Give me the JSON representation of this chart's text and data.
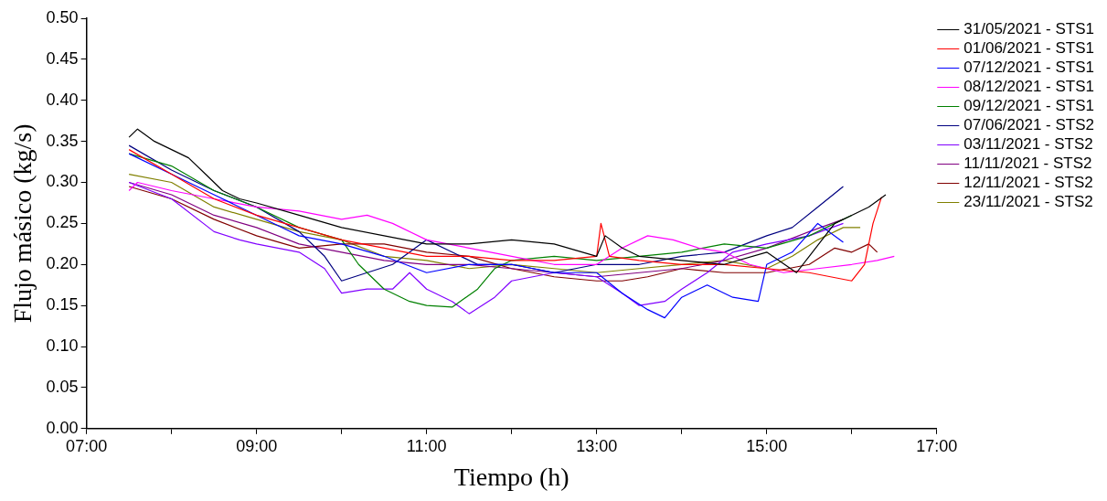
{
  "chart_data": {
    "type": "line",
    "xlabel": "Tiempo (h)",
    "ylabel": "Flujo másico (kg/s)",
    "xlim": [
      7,
      17
    ],
    "ylim": [
      0,
      0.5
    ],
    "xticks": [
      {
        "value": 7,
        "label": "07:00"
      },
      {
        "value": 8,
        "label": null
      },
      {
        "value": 9,
        "label": "09:00"
      },
      {
        "value": 10,
        "label": null
      },
      {
        "value": 11,
        "label": "11:00"
      },
      {
        "value": 12,
        "label": null
      },
      {
        "value": 13,
        "label": "13:00"
      },
      {
        "value": 14,
        "label": null
      },
      {
        "value": 15,
        "label": "15:00"
      },
      {
        "value": 16,
        "label": null
      },
      {
        "value": 17,
        "label": "17:00"
      }
    ],
    "yticks": [
      {
        "value": 0,
        "label": "0.00"
      },
      {
        "value": 0.05,
        "label": "0.05"
      },
      {
        "value": 0.1,
        "label": "0.10"
      },
      {
        "value": 0.15,
        "label": "0.15"
      },
      {
        "value": 0.2,
        "label": "0.20"
      },
      {
        "value": 0.25,
        "label": "0.25"
      },
      {
        "value": 0.3,
        "label": "0.30"
      },
      {
        "value": 0.35,
        "label": "0.35"
      },
      {
        "value": 0.4,
        "label": "0.40"
      },
      {
        "value": 0.45,
        "label": "0.45"
      },
      {
        "value": 0.5,
        "label": "0.50"
      }
    ],
    "legend": "top right",
    "marker": "none",
    "line_style": "solid",
    "series": [
      {
        "name": "31/05/2021 - STS1",
        "color": "#000000",
        "x": [
          7.5,
          7.6,
          7.8,
          8.0,
          8.2,
          8.4,
          8.6,
          8.8,
          9.0,
          9.5,
          10.0,
          10.5,
          11.0,
          11.5,
          12.0,
          12.5,
          13.0,
          13.1,
          13.3,
          13.5,
          14.0,
          14.5,
          15.0,
          15.35,
          15.5,
          15.8,
          16.0,
          16.2,
          16.4
        ],
        "values": [
          0.355,
          0.365,
          0.35,
          0.34,
          0.33,
          0.31,
          0.29,
          0.28,
          0.275,
          0.26,
          0.245,
          0.235,
          0.225,
          0.225,
          0.23,
          0.225,
          0.21,
          0.235,
          0.22,
          0.21,
          0.205,
          0.2,
          0.215,
          0.19,
          0.21,
          0.25,
          0.26,
          0.27,
          0.285
        ]
      },
      {
        "name": "01/06/2021 - STS1",
        "color": "#ff0000",
        "x": [
          7.5,
          8.0,
          8.5,
          9.0,
          9.5,
          10.0,
          10.5,
          11.0,
          11.5,
          12.0,
          12.5,
          13.0,
          13.05,
          13.15,
          13.5,
          14.0,
          14.5,
          15.0,
          15.5,
          16.0,
          16.15,
          16.25,
          16.35
        ],
        "values": [
          0.34,
          0.31,
          0.28,
          0.26,
          0.245,
          0.23,
          0.22,
          0.21,
          0.21,
          0.205,
          0.205,
          0.21,
          0.25,
          0.21,
          0.205,
          0.2,
          0.2,
          0.195,
          0.19,
          0.18,
          0.2,
          0.25,
          0.282
        ]
      },
      {
        "name": "07/12/2021 - STS1",
        "color": "#0000ff",
        "x": [
          7.5,
          8.0,
          8.5,
          9.0,
          9.5,
          10.0,
          10.5,
          11.0,
          11.5,
          12.0,
          12.5,
          13.0,
          13.3,
          13.6,
          13.8,
          14.0,
          14.3,
          14.6,
          14.9,
          15.0,
          15.3,
          15.6,
          15.9
        ],
        "values": [
          0.335,
          0.31,
          0.285,
          0.26,
          0.235,
          0.225,
          0.21,
          0.19,
          0.2,
          0.2,
          0.19,
          0.19,
          0.165,
          0.145,
          0.135,
          0.16,
          0.175,
          0.16,
          0.155,
          0.2,
          0.215,
          0.25,
          0.227
        ]
      },
      {
        "name": "08/12/2021 - STS1",
        "color": "#ff00ff",
        "x": [
          7.5,
          7.6,
          8.0,
          8.5,
          9.0,
          9.5,
          10.0,
          10.3,
          10.6,
          11.0,
          11.5,
          12.0,
          12.5,
          13.0,
          13.3,
          13.6,
          13.9,
          14.2,
          14.5,
          14.8,
          15.2,
          15.6,
          16.0,
          16.3,
          16.5
        ],
        "values": [
          0.29,
          0.3,
          0.29,
          0.28,
          0.27,
          0.265,
          0.255,
          0.26,
          0.25,
          0.23,
          0.22,
          0.21,
          0.2,
          0.2,
          0.22,
          0.235,
          0.23,
          0.22,
          0.215,
          0.2,
          0.19,
          0.195,
          0.2,
          0.205,
          0.21
        ]
      },
      {
        "name": "09/12/2021 - STS1",
        "color": "#008000",
        "x": [
          7.5,
          8.0,
          8.5,
          9.0,
          9.5,
          10.0,
          10.2,
          10.5,
          10.8,
          11.0,
          11.3,
          11.6,
          11.8,
          12.0,
          12.5,
          13.0,
          13.5,
          14.0,
          14.5,
          15.0,
          15.5,
          15.8,
          16.0
        ],
        "values": [
          0.335,
          0.32,
          0.29,
          0.27,
          0.245,
          0.23,
          0.2,
          0.17,
          0.155,
          0.15,
          0.148,
          0.17,
          0.195,
          0.205,
          0.21,
          0.205,
          0.21,
          0.215,
          0.225,
          0.22,
          0.235,
          0.25,
          0.26
        ]
      },
      {
        "name": "07/06/2021 - STS2",
        "color": "#000080",
        "x": [
          7.5,
          8.0,
          8.5,
          9.0,
          9.5,
          9.8,
          10.0,
          10.3,
          10.6,
          11.0,
          11.3,
          11.6,
          12.0,
          12.5,
          13.0,
          13.5,
          14.0,
          14.5,
          15.0,
          15.3,
          15.6,
          15.9
        ],
        "values": [
          0.345,
          0.315,
          0.29,
          0.27,
          0.24,
          0.21,
          0.18,
          0.19,
          0.2,
          0.23,
          0.215,
          0.2,
          0.2,
          0.19,
          0.2,
          0.2,
          0.21,
          0.215,
          0.235,
          0.245,
          0.27,
          0.295
        ]
      },
      {
        "name": "03/11/2021 - STS2",
        "color": "#8000ff",
        "x": [
          7.5,
          8.0,
          8.5,
          8.8,
          9.0,
          9.5,
          9.8,
          10.0,
          10.3,
          10.6,
          10.8,
          11.0,
          11.3,
          11.5,
          11.8,
          12.0,
          12.5,
          13.0,
          13.3,
          13.5,
          13.8,
          14.0,
          14.3,
          14.6,
          15.0,
          15.5,
          15.9
        ],
        "values": [
          0.3,
          0.28,
          0.24,
          0.23,
          0.225,
          0.215,
          0.195,
          0.165,
          0.17,
          0.17,
          0.19,
          0.17,
          0.155,
          0.14,
          0.16,
          0.18,
          0.19,
          0.185,
          0.165,
          0.15,
          0.155,
          0.17,
          0.19,
          0.215,
          0.225,
          0.235,
          0.25
        ]
      },
      {
        "name": "11/11/2021 - STS2",
        "color": "#800080",
        "x": [
          7.5,
          8.0,
          8.5,
          9.0,
          9.5,
          10.0,
          10.5,
          11.0,
          11.5,
          12.0,
          12.5,
          13.0,
          13.5,
          14.0,
          14.5,
          15.0,
          15.5,
          15.9
        ],
        "values": [
          0.3,
          0.285,
          0.26,
          0.245,
          0.225,
          0.215,
          0.205,
          0.2,
          0.2,
          0.195,
          0.19,
          0.185,
          0.19,
          0.195,
          0.205,
          0.22,
          0.24,
          0.255
        ]
      },
      {
        "name": "12/11/2021 - STS2",
        "color": "#800000",
        "x": [
          7.5,
          8.0,
          8.5,
          9.0,
          9.5,
          10.0,
          10.5,
          11.0,
          11.5,
          12.0,
          12.5,
          13.0,
          13.3,
          13.6,
          14.0,
          14.5,
          15.0,
          15.5,
          15.8,
          16.0,
          16.2,
          16.3
        ],
        "values": [
          0.295,
          0.28,
          0.255,
          0.235,
          0.22,
          0.225,
          0.225,
          0.215,
          0.21,
          0.195,
          0.185,
          0.18,
          0.18,
          0.185,
          0.195,
          0.19,
          0.19,
          0.2,
          0.22,
          0.215,
          0.225,
          0.215
        ]
      },
      {
        "name": "23/11/2021 - STS2",
        "color": "#808000",
        "x": [
          7.5,
          8.0,
          8.5,
          9.0,
          9.5,
          10.0,
          10.5,
          11.0,
          11.5,
          12.0,
          12.5,
          13.0,
          13.5,
          14.0,
          14.5,
          15.0,
          15.3,
          15.6,
          15.9,
          16.1
        ],
        "values": [
          0.31,
          0.3,
          0.27,
          0.255,
          0.24,
          0.23,
          0.21,
          0.205,
          0.195,
          0.2,
          0.195,
          0.19,
          0.195,
          0.2,
          0.205,
          0.195,
          0.21,
          0.23,
          0.245,
          0.245
        ]
      }
    ]
  }
}
